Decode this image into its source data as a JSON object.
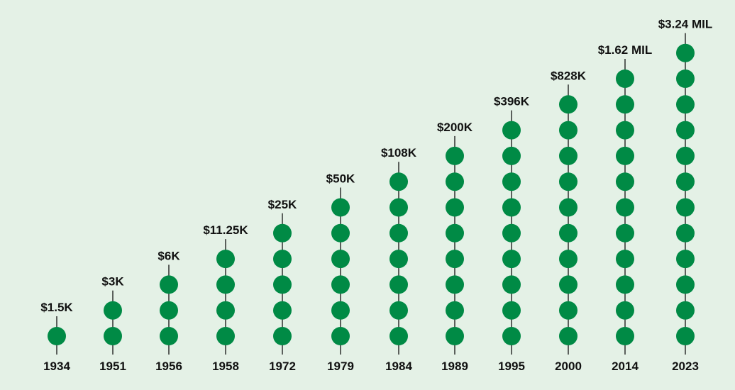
{
  "chart_data": {
    "type": "scatter",
    "title": "",
    "xlabel": "",
    "ylabel": "",
    "grid": false,
    "categories": [
      "1934",
      "1951",
      "1956",
      "1958",
      "1972",
      "1979",
      "1984",
      "1989",
      "1995",
      "2000",
      "2014",
      "2023"
    ],
    "labels": [
      "$1.5K",
      "$3K",
      "$6K",
      "$11.25K",
      "$25K",
      "$50K",
      "$108K",
      "$200K",
      "$396K",
      "$828K",
      "$1.62 MIL",
      "$3.24 MIL"
    ],
    "dots": [
      1,
      2,
      3,
      4,
      5,
      6,
      7,
      8,
      9,
      10,
      11,
      12
    ],
    "colors": {
      "background": "#e4f1e6",
      "dot": "#008a45",
      "line": "#111111",
      "text": "#111111"
    }
  }
}
